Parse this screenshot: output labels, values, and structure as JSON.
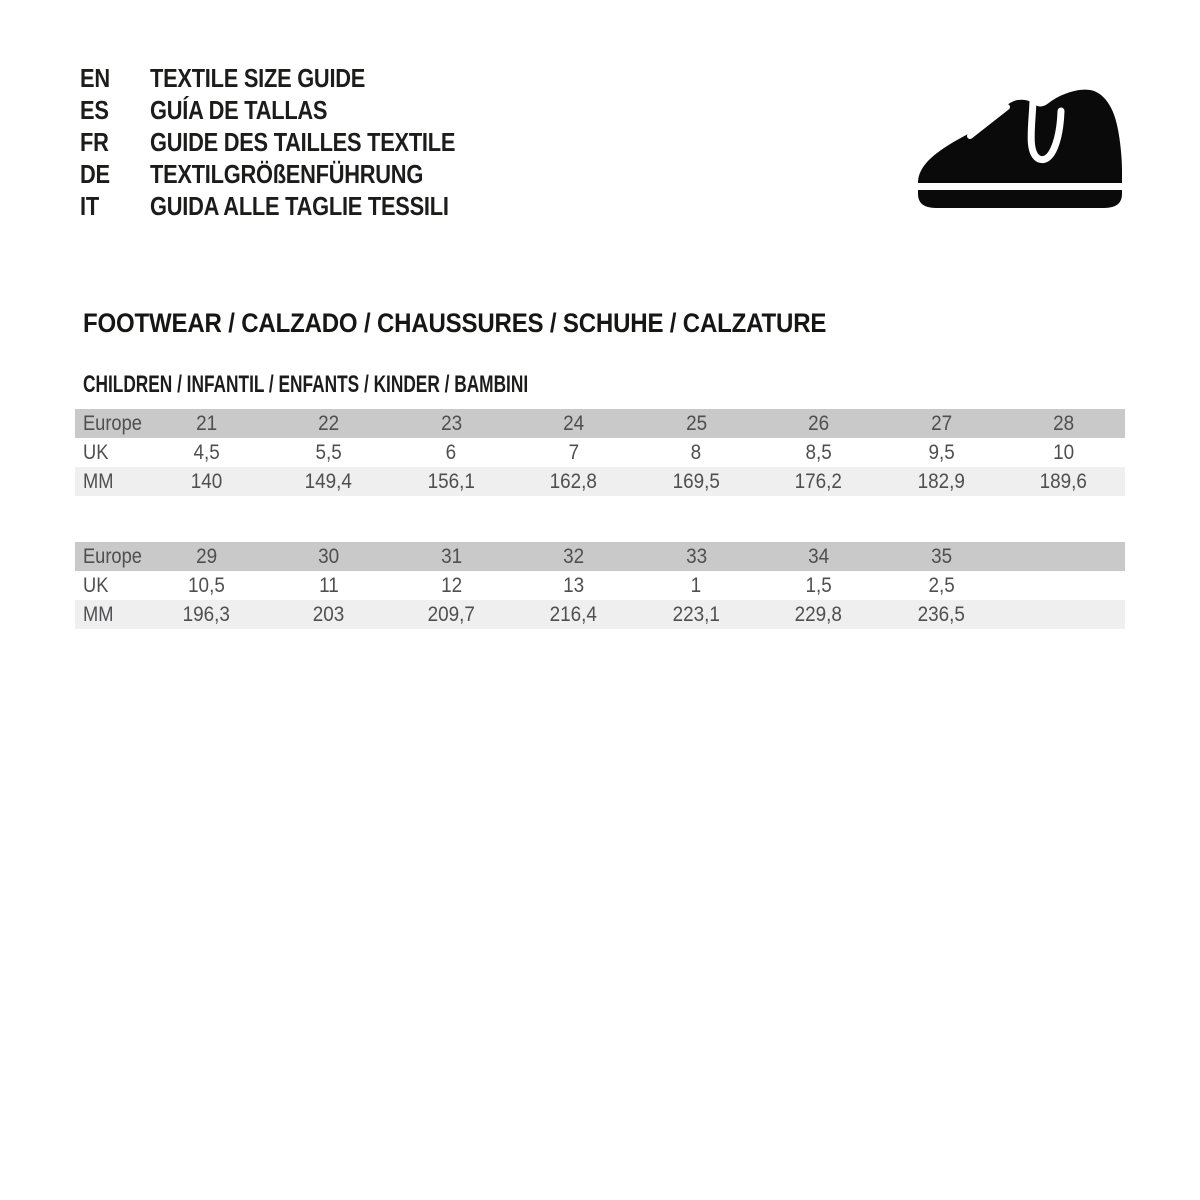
{
  "languages": [
    {
      "code": "EN",
      "title": "TEXTILE SIZE GUIDE"
    },
    {
      "code": "ES",
      "title": "GUÍA DE TALLAS"
    },
    {
      "code": "FR",
      "title": "GUIDE DES TAILLES TEXTILE"
    },
    {
      "code": "DE",
      "title": "TEXTILGRÖßENFÜHRUNG"
    },
    {
      "code": "IT",
      "title": "GUIDA ALLE TAGLIE TESSILI"
    }
  ],
  "icon": {
    "name": "children-shoe-icon",
    "color": "#0a0a0a"
  },
  "section": {
    "title": "FOOTWEAR / CALZADO / CHAUSSURES / SCHUHE / CALZATURE"
  },
  "subsection": {
    "title": "CHILDREN / INFANTIL / ENFANTS / KINDER / BAMBINI"
  },
  "colors": {
    "page_bg": "#ffffff",
    "europe_row_bg": "#c9c9c9",
    "uk_row_bg": "#ffffff",
    "mm_row_bg": "#efefef",
    "table_text": "#4f4f51",
    "heading_text": "#1c1c1b"
  },
  "tables": [
    {
      "rows": [
        {
          "label": "Europe",
          "values": [
            "21",
            "22",
            "23",
            "24",
            "25",
            "26",
            "27",
            "28"
          ]
        },
        {
          "label": "UK",
          "values": [
            "4,5",
            "5,5",
            "6",
            "7",
            "8",
            "8,5",
            "9,5",
            "10"
          ]
        },
        {
          "label": "MM",
          "values": [
            "140",
            "149,4",
            "156,1",
            "162,8",
            "169,5",
            "176,2",
            "182,9",
            "189,6"
          ]
        }
      ]
    },
    {
      "rows": [
        {
          "label": "Europe",
          "values": [
            "29",
            "30",
            "31",
            "32",
            "33",
            "34",
            "35",
            ""
          ]
        },
        {
          "label": "UK",
          "values": [
            "10,5",
            "11",
            "12",
            "13",
            "1",
            "1,5",
            "2,5",
            ""
          ]
        },
        {
          "label": "MM",
          "values": [
            "196,3",
            "203",
            "209,7",
            "216,4",
            "223,1",
            "229,8",
            "236,5",
            ""
          ]
        }
      ]
    }
  ]
}
